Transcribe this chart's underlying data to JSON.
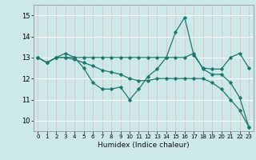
{
  "xlabel": "Humidex (Indice chaleur)",
  "bg_color": "#cce8e8",
  "line_color": "#1a7a6e",
  "xlim": [
    -0.5,
    23.5
  ],
  "ylim": [
    9.5,
    15.5
  ],
  "yticks": [
    10,
    11,
    12,
    13,
    14,
    15
  ],
  "xticks": [
    0,
    1,
    2,
    3,
    4,
    5,
    6,
    7,
    8,
    9,
    10,
    11,
    12,
    13,
    14,
    15,
    16,
    17,
    18,
    19,
    20,
    21,
    22,
    23
  ],
  "lines": [
    {
      "x": [
        0,
        1,
        2,
        3,
        4,
        5,
        6,
        7,
        8,
        9,
        10,
        11,
        12,
        13,
        14,
        15,
        16,
        17,
        18,
        19,
        20,
        21,
        22,
        23
      ],
      "y": [
        13.0,
        12.75,
        13.0,
        13.2,
        13.0,
        12.5,
        11.8,
        11.5,
        11.5,
        11.6,
        11.0,
        11.5,
        12.1,
        12.45,
        13.0,
        14.2,
        14.9,
        13.1,
        12.5,
        12.45,
        12.45,
        13.0,
        13.2,
        12.5
      ]
    },
    {
      "x": [
        0,
        1,
        2,
        3,
        4,
        5,
        6,
        7,
        8,
        9,
        10,
        11,
        12,
        13,
        14,
        15,
        16,
        17,
        18,
        19,
        20,
        21,
        22,
        23
      ],
      "y": [
        13.0,
        12.75,
        13.0,
        13.0,
        13.0,
        13.0,
        13.0,
        13.0,
        13.0,
        13.0,
        13.0,
        13.0,
        13.0,
        13.0,
        13.0,
        13.0,
        13.0,
        13.2,
        12.45,
        12.2,
        12.2,
        11.8,
        11.1,
        9.7
      ]
    },
    {
      "x": [
        0,
        1,
        2,
        3,
        4,
        5,
        6,
        7,
        8,
        9,
        10,
        11,
        12,
        13,
        14,
        15,
        16,
        17,
        18,
        19,
        20,
        21,
        22,
        23
      ],
      "y": [
        13.0,
        12.75,
        13.0,
        13.0,
        12.9,
        12.75,
        12.6,
        12.4,
        12.3,
        12.2,
        12.0,
        11.9,
        11.9,
        12.0,
        12.0,
        12.0,
        12.0,
        12.0,
        12.0,
        11.8,
        11.5,
        11.0,
        10.5,
        9.7
      ]
    }
  ]
}
